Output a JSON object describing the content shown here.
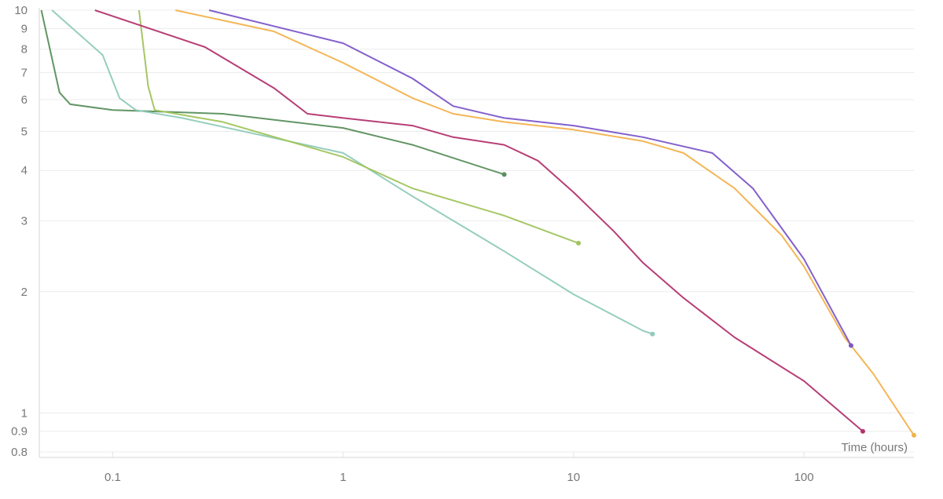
{
  "chart_data": {
    "type": "line",
    "title": "",
    "xlabel": "Time (hours)",
    "ylabel": "",
    "xscale": "log",
    "yscale": "log",
    "xlim": [
      0.048,
      300
    ],
    "ylim": [
      0.8,
      10
    ],
    "grid": true,
    "legend": "none",
    "x_ticks": [
      0.1,
      1,
      10,
      100
    ],
    "x_tick_labels": [
      "0.1",
      "1",
      "10",
      "100"
    ],
    "y_ticks": [
      10,
      9,
      8,
      7,
      6,
      5,
      4,
      3,
      2,
      1,
      0.9,
      0.8
    ],
    "y_tick_labels": [
      "10",
      "9",
      "8",
      "7",
      "6",
      "5",
      "4",
      "3",
      "2",
      "1",
      "0.9",
      "0.8"
    ],
    "series": [
      {
        "color": "#5a8f5c",
        "points": [
          [
            0.049,
            10
          ],
          [
            0.0588,
            6.24
          ],
          [
            0.0654,
            5.84
          ],
          [
            0.1,
            5.65
          ],
          [
            0.3,
            5.53
          ],
          [
            1,
            5.1
          ],
          [
            2,
            4.63
          ],
          [
            5,
            3.91
          ]
        ]
      },
      {
        "color": "#8fcbbb",
        "points": [
          [
            0.0545,
            10
          ],
          [
            0.0904,
            7.74
          ],
          [
            0.107,
            6.05
          ],
          [
            0.126,
            5.65
          ],
          [
            0.2,
            5.4
          ],
          [
            1,
            4.42
          ],
          [
            2,
            3.45
          ],
          [
            5,
            2.52
          ],
          [
            10,
            1.97
          ],
          [
            20,
            1.6
          ],
          [
            22,
            1.57
          ]
        ]
      },
      {
        "color": "#a0c45c",
        "points": [
          [
            0.13,
            10
          ],
          [
            0.1425,
            6.47
          ],
          [
            0.152,
            5.65
          ],
          [
            0.3,
            5.28
          ],
          [
            1,
            4.32
          ],
          [
            2,
            3.61
          ],
          [
            5,
            3.09
          ],
          [
            10.5,
            2.64
          ]
        ]
      },
      {
        "color": "#b3346f",
        "points": [
          [
            0.0837,
            10
          ],
          [
            0.2515,
            8.1
          ],
          [
            0.5,
            6.41
          ],
          [
            0.7,
            5.53
          ],
          [
            1,
            5.4
          ],
          [
            2,
            5.17
          ],
          [
            3,
            4.84
          ],
          [
            5,
            4.63
          ],
          [
            7,
            4.23
          ],
          [
            10,
            3.53
          ],
          [
            15,
            2.82
          ],
          [
            20,
            2.36
          ],
          [
            30,
            1.93
          ],
          [
            50,
            1.54
          ],
          [
            100,
            1.2
          ],
          [
            180,
            0.9
          ]
        ]
      },
      {
        "color": "#f2b24c",
        "points": [
          [
            0.187,
            10
          ],
          [
            0.5,
            8.86
          ],
          [
            1,
            7.4
          ],
          [
            2,
            6.05
          ],
          [
            3,
            5.53
          ],
          [
            5,
            5.28
          ],
          [
            10,
            5.05
          ],
          [
            20,
            4.73
          ],
          [
            30,
            4.42
          ],
          [
            50,
            3.61
          ],
          [
            80,
            2.76
          ],
          [
            100,
            2.31
          ],
          [
            150,
            1.54
          ],
          [
            200,
            1.25
          ],
          [
            300,
            0.88
          ]
        ]
      },
      {
        "color": "#7c57c9",
        "points": [
          [
            0.262,
            10
          ],
          [
            1,
            8.28
          ],
          [
            2,
            6.77
          ],
          [
            3,
            5.78
          ],
          [
            5,
            5.4
          ],
          [
            10,
            5.17
          ],
          [
            20,
            4.84
          ],
          [
            40,
            4.42
          ],
          [
            60,
            3.61
          ],
          [
            100,
            2.41
          ],
          [
            160,
            1.47
          ]
        ]
      }
    ]
  }
}
